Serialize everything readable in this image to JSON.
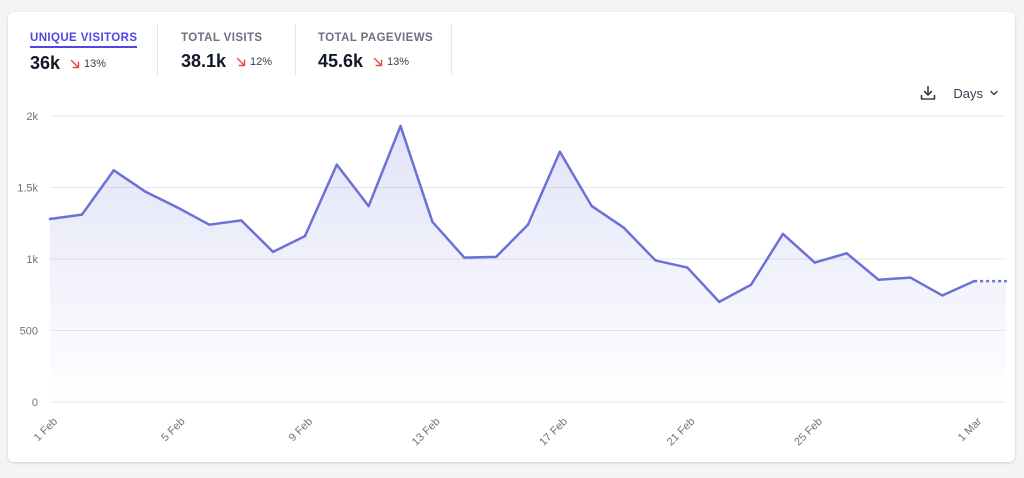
{
  "metrics": [
    {
      "label": "UNIQUE VISITORS",
      "value": "36k",
      "change": "13%",
      "direction": "down",
      "active": true
    },
    {
      "label": "TOTAL VISITS",
      "value": "38.1k",
      "change": "12%",
      "direction": "down",
      "active": false
    },
    {
      "label": "TOTAL PAGEVIEWS",
      "value": "45.6k",
      "change": "13%",
      "direction": "down",
      "active": false
    }
  ],
  "controls": {
    "download_icon": "download-icon",
    "interval_label": "Days",
    "interval_icon": "chevron-down-icon"
  },
  "colors": {
    "line": "#6b72d6",
    "fill": "#e8e9f8",
    "grid": "#e5e7eb",
    "axis_text": "#6b7280",
    "active_tab": "#4f46e5",
    "decrease_arrow": "#ef4444"
  },
  "chart_data": {
    "type": "area",
    "x": [
      "1 Feb",
      "2 Feb",
      "3 Feb",
      "4 Feb",
      "5 Feb",
      "6 Feb",
      "7 Feb",
      "8 Feb",
      "9 Feb",
      "10 Feb",
      "11 Feb",
      "12 Feb",
      "13 Feb",
      "14 Feb",
      "15 Feb",
      "16 Feb",
      "17 Feb",
      "18 Feb",
      "19 Feb",
      "20 Feb",
      "21 Feb",
      "22 Feb",
      "23 Feb",
      "24 Feb",
      "25 Feb",
      "26 Feb",
      "27 Feb",
      "28 Feb",
      "29 Feb",
      "1 Mar",
      "2 Mar"
    ],
    "x_tick_labels": [
      "1 Feb",
      "5 Feb",
      "9 Feb",
      "13 Feb",
      "17 Feb",
      "21 Feb",
      "25 Feb",
      "1 Mar"
    ],
    "x_tick_indices": [
      0,
      4,
      8,
      12,
      16,
      20,
      24,
      29
    ],
    "y_ticks": [
      0,
      500,
      1000,
      1500,
      2000
    ],
    "y_tick_labels": [
      "0",
      "500",
      "1k",
      "1.5k",
      "2k"
    ],
    "ylim": [
      0,
      2000
    ],
    "series": [
      {
        "values": [
          1280,
          1310,
          1620,
          1470,
          1360,
          1240,
          1270,
          1050,
          1160,
          1660,
          1370,
          1930,
          1260,
          1010,
          1015,
          1240,
          1750,
          1370,
          1220,
          990,
          940,
          700,
          820,
          1175,
          975,
          1040,
          855,
          870,
          745,
          845,
          845
        ],
        "dotted_from_index": 29
      }
    ],
    "grid": true
  }
}
